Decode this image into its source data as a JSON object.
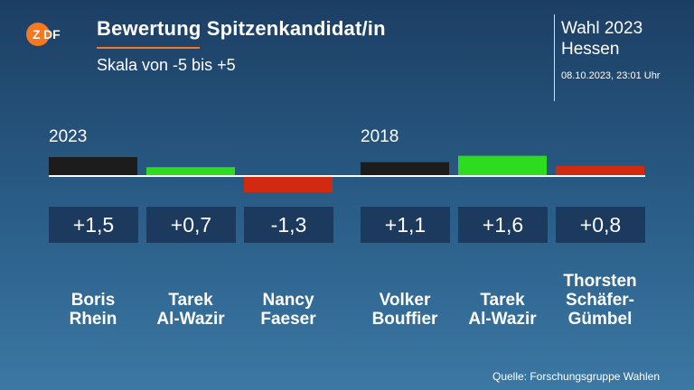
{
  "header": {
    "logo_text": "ZDF",
    "title": "Bewertung Spitzenkandidat/in",
    "subtitle": "Skala von -5 bis +5",
    "election_line1": "Wahl 2023",
    "election_line2": "Hessen",
    "timestamp": "08.10.2023, 23:01 Uhr"
  },
  "footer": {
    "source": "Quelle: Forschungsgruppe Wahlen"
  },
  "colors": {
    "background": "#2a5e88",
    "accent": "#f47920",
    "cdu": "#1c1c1c",
    "gruene": "#2ddc1e",
    "spd": "#d22a10",
    "value_box": "#1c3a5e"
  },
  "chart_data": {
    "type": "bar",
    "scale": [
      -5,
      5
    ],
    "groups": [
      {
        "label": "2023",
        "items": [
          {
            "value": 1.5,
            "label": "+1,5",
            "name": [
              "Boris",
              "Rhein"
            ],
            "color": "#1c1c1c"
          },
          {
            "value": 0.7,
            "label": "+0,7",
            "name": [
              "Tarek",
              "Al-Wazir"
            ],
            "color": "#2ddc1e"
          },
          {
            "value": -1.3,
            "label": "-1,3",
            "name": [
              "Nancy",
              "Faeser"
            ],
            "color": "#d22a10"
          }
        ]
      },
      {
        "label": "2018",
        "items": [
          {
            "value": 1.1,
            "label": "+1,1",
            "name": [
              "Volker",
              "Bouffier"
            ],
            "color": "#1c1c1c"
          },
          {
            "value": 1.6,
            "label": "+1,6",
            "name": [
              "Tarek",
              "Al-Wazir"
            ],
            "color": "#2ddc1e"
          },
          {
            "value": 0.8,
            "label": "+0,8",
            "name": [
              "Thorsten",
              "Schäfer-",
              "Gümbel"
            ],
            "color": "#d22a10"
          }
        ]
      }
    ]
  }
}
